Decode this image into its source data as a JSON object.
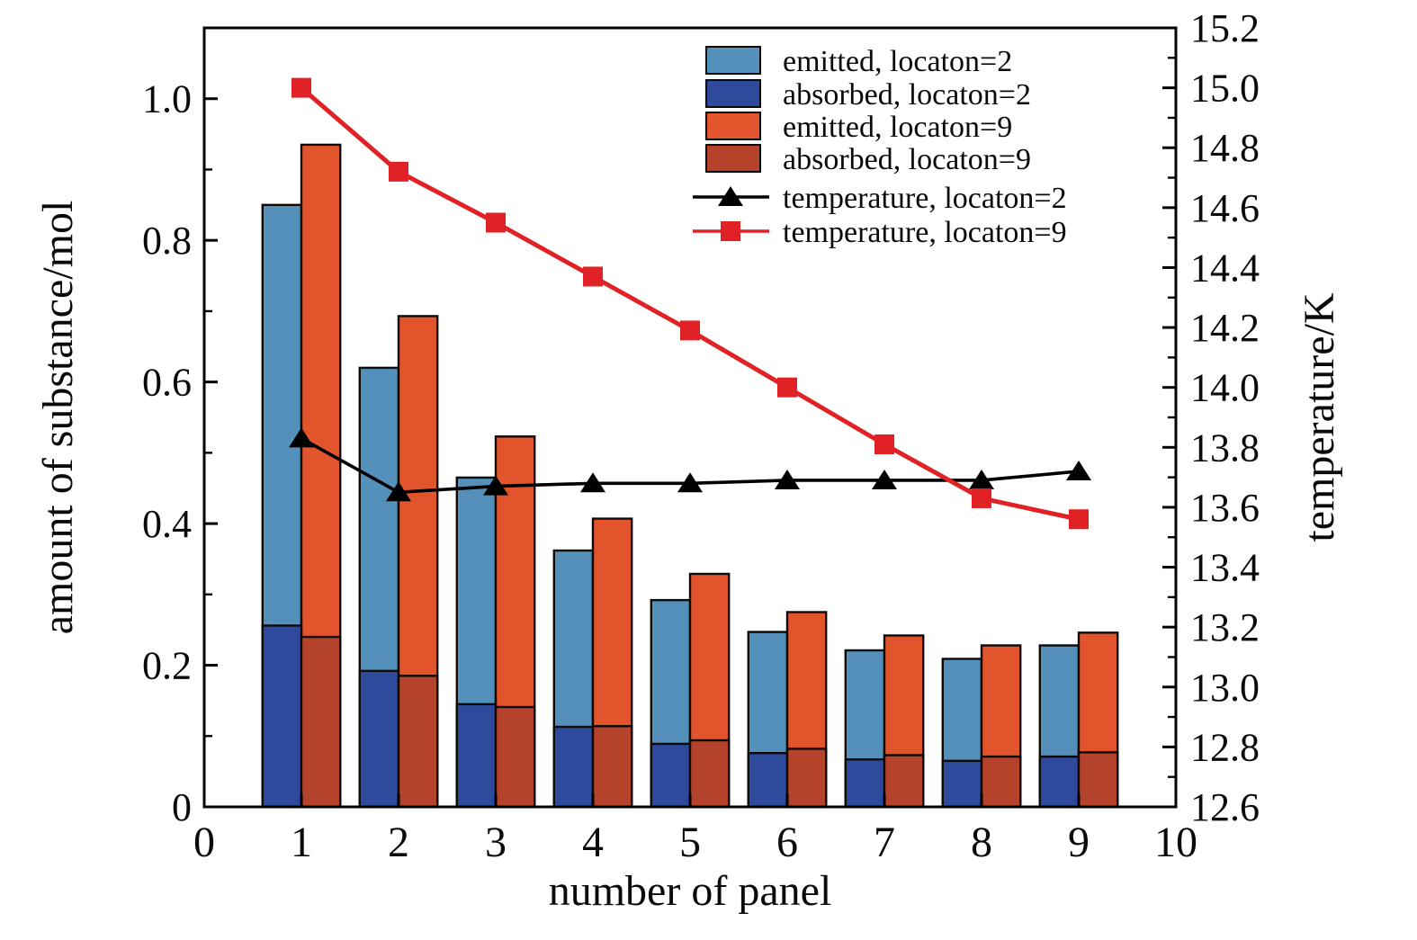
{
  "chart_data": {
    "type": "bar",
    "subtype": "grouped-overlay-bars-with-dual-axis-lines",
    "title": "",
    "categories": [
      1,
      2,
      3,
      4,
      5,
      6,
      7,
      8,
      9
    ],
    "bar_width_axis_units": 0.4,
    "bar_series": [
      {
        "name": "emitted, locaton=2",
        "axis": "left",
        "color": "#5590ba",
        "values": [
          0.85,
          0.62,
          0.465,
          0.362,
          0.292,
          0.247,
          0.221,
          0.209,
          0.228
        ]
      },
      {
        "name": "absorbed, locaton=2",
        "axis": "left",
        "color": "#2d4a9c",
        "values": [
          0.256,
          0.192,
          0.145,
          0.113,
          0.089,
          0.076,
          0.067,
          0.065,
          0.071
        ]
      },
      {
        "name": "emitted, locaton=9",
        "axis": "left",
        "color": "#e2542b",
        "values": [
          0.935,
          0.693,
          0.523,
          0.407,
          0.329,
          0.275,
          0.242,
          0.228,
          0.246
        ]
      },
      {
        "name": "absorbed, locaton=9",
        "axis": "left",
        "color": "#b5432b",
        "values": [
          0.24,
          0.185,
          0.141,
          0.114,
          0.094,
          0.082,
          0.073,
          0.071,
          0.077
        ]
      }
    ],
    "line_series": [
      {
        "name": "temperature, locaton=2",
        "axis": "right",
        "color": "#000000",
        "marker": "triangle",
        "values": [
          13.83,
          13.65,
          13.67,
          13.68,
          13.68,
          13.69,
          13.69,
          13.69,
          13.72
        ]
      },
      {
        "name": "temperature, locaton=9",
        "axis": "right",
        "color": "#e02125",
        "marker": "square",
        "values": [
          15.0,
          14.72,
          14.55,
          14.37,
          14.19,
          14.0,
          13.81,
          13.63,
          13.56
        ]
      }
    ],
    "x_axis": {
      "label": "number of panel",
      "min": 0,
      "max": 10,
      "tick_values": [
        0,
        1,
        2,
        3,
        4,
        5,
        6,
        7,
        8,
        9,
        10
      ],
      "tick_labels": [
        "0",
        "1",
        "2",
        "3",
        "4",
        "5",
        "6",
        "7",
        "8",
        "9",
        "10"
      ]
    },
    "y_axis_left": {
      "label": "amount of substance/mol",
      "min": 0,
      "max": 1.1,
      "tick_values": [
        0,
        0.2,
        0.4,
        0.6,
        0.8,
        1.0
      ],
      "tick_labels": [
        "0",
        "0.2",
        "0.4",
        "0.6",
        "0.8",
        "1.0"
      ],
      "minor_tick_values": [
        0.1,
        0.3,
        0.5,
        0.7,
        0.9
      ]
    },
    "y_axis_right": {
      "label": "temperature/K",
      "min": 12.6,
      "max": 15.2,
      "tick_values": [
        12.6,
        12.8,
        13.0,
        13.2,
        13.4,
        13.6,
        13.8,
        14.0,
        14.2,
        14.4,
        14.6,
        14.8,
        15.0,
        15.2
      ],
      "tick_labels": [
        "12.6",
        "12.8",
        "13.0",
        "13.2",
        "13.4",
        "13.6",
        "13.8",
        "14.0",
        "14.2",
        "14.4",
        "14.6",
        "14.8",
        "15.0",
        "15.2"
      ],
      "minor_tick_values": [
        12.7,
        12.9,
        13.1,
        13.3,
        13.5,
        13.7,
        13.9,
        14.1,
        14.3,
        14.5,
        14.7,
        14.9,
        15.1
      ]
    },
    "grid": "off",
    "legend_position": "top-right-inside",
    "legend": [
      {
        "label": "emitted, locaton=2",
        "type": "patch",
        "color": "#5590ba"
      },
      {
        "label": "absorbed, locaton=2",
        "type": "patch",
        "color": "#2d4a9c"
      },
      {
        "label": "emitted, locaton=9",
        "type": "patch",
        "color": "#e2542b"
      },
      {
        "label": "absorbed, locaton=9",
        "type": "patch",
        "color": "#b5432b"
      },
      {
        "label": "temperature, locaton=2",
        "type": "line",
        "color": "#000000",
        "marker": "triangle"
      },
      {
        "label": "temperature, locaton=9",
        "type": "line",
        "color": "#e02125",
        "marker": "square"
      }
    ],
    "colors": {
      "frame": "#000000",
      "background": "#ffffff",
      "bar_outline": "#0a0a0a"
    }
  }
}
